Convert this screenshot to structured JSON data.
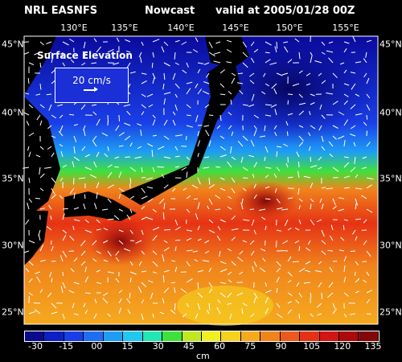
{
  "header": {
    "model": "NRL EASNFS",
    "product": "Nowcast",
    "valid": "valid at 2005/01/28 00Z"
  },
  "map": {
    "title": "Surface Elevation",
    "legend_speed": "20 cm/s",
    "lon_labels": [
      "130°E",
      "135°E",
      "140°E",
      "145°E",
      "150°E",
      "155°E"
    ],
    "lat_labels": [
      "45°N",
      "40°N",
      "35°N",
      "30°N",
      "25°N"
    ],
    "land_color": "#000000",
    "background_color": "#000000"
  },
  "colorbar": {
    "unit": "cm",
    "tick_labels": [
      "-30",
      "-15",
      "00",
      "15",
      "30",
      "45",
      "60",
      "75",
      "90",
      "105",
      "120",
      "135"
    ],
    "colors": [
      "#0a0a8c",
      "#0c20c4",
      "#1a3ee6",
      "#1f6ef0",
      "#1e9cf5",
      "#20c8f0",
      "#22e6b4",
      "#40e03c",
      "#c0e820",
      "#f0f020",
      "#f5d21e",
      "#f5aa1e",
      "#f0841c",
      "#eb5a1c",
      "#e63214",
      "#d21414",
      "#aa0a0a",
      "#820808"
    ]
  }
}
